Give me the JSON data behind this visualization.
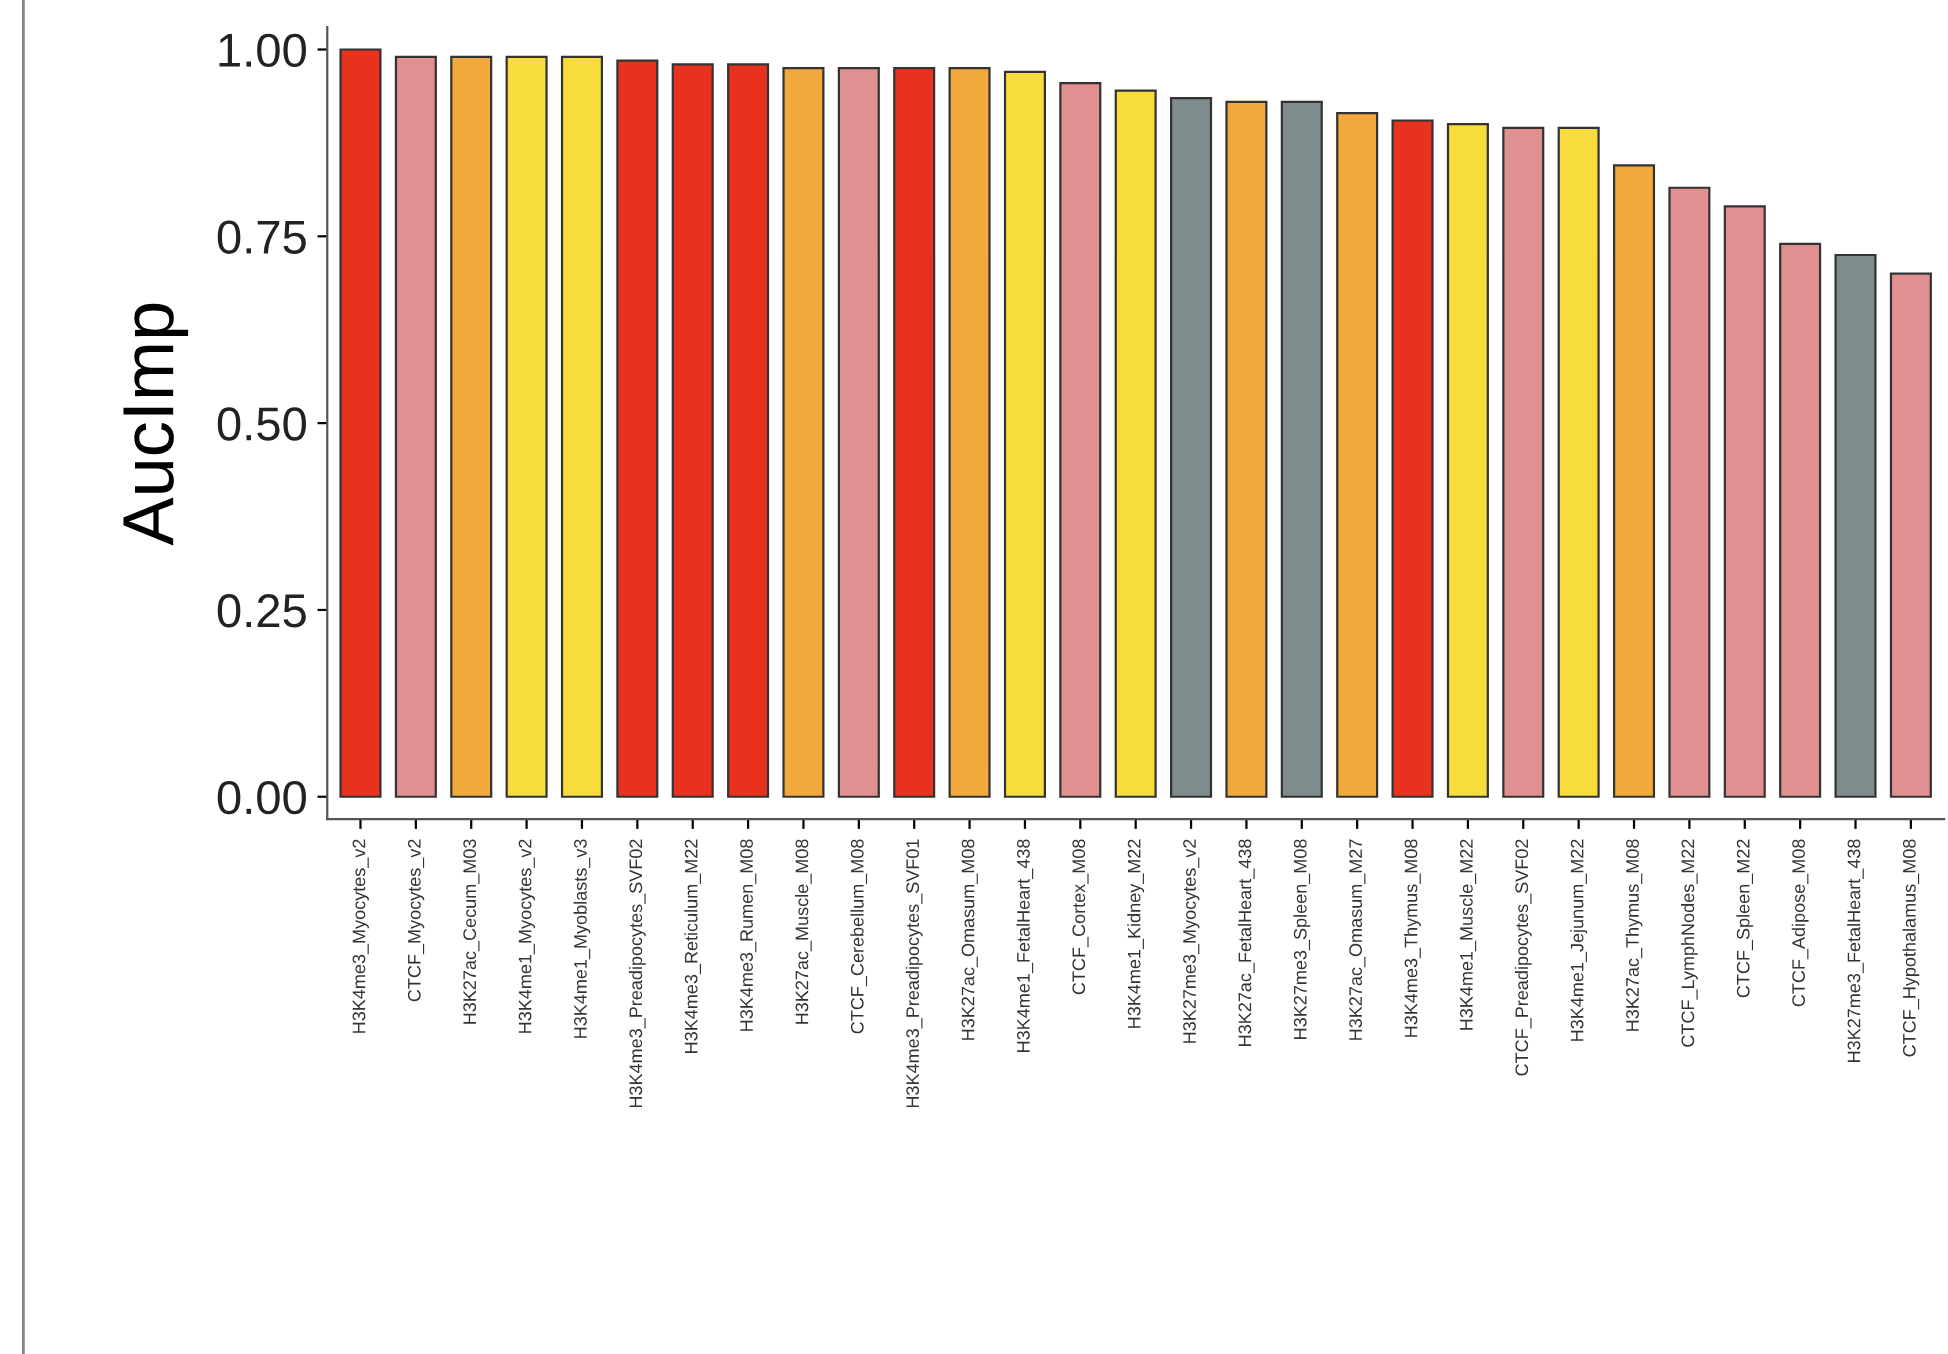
{
  "chart_data": {
    "type": "bar",
    "ylabel": "AucImp",
    "categories": [
      "H3K4me3_Myocytes_v2",
      "CTCF_Myocytes_v2",
      "H3K27ac_Cecum_M03",
      "H3K4me1_Myocytes_v2",
      "H3K4me1_Myoblasts_v3",
      "H3K4me3_Preadipocytes_SVF02",
      "H3K4me3_Reticulum_M22",
      "H3K4me3_Rumen_M08",
      "H3K27ac_Muscle_M08",
      "CTCF_Cerebellum_M08",
      "H3K4me3_Preadipocytes_SVF01",
      "H3K27ac_Omasum_M08",
      "H3K4me1_FetalHeart_438",
      "CTCF_Cortex_M08",
      "H3K4me1_Kidney_M22",
      "H3K27me3_Myocytes_v2",
      "H3K27ac_FetalHeart_438",
      "H3K27me3_Spleen_M08",
      "H3K27ac_Omasum_M27",
      "H3K4me3_Thymus_M08",
      "H3K4me1_Muscle_M22",
      "CTCF_Preadipocytes_SVF02",
      "H3K4me1_Jejunum_M22",
      "H3K27ac_Thymus_M08",
      "CTCF_LymphNodes_M22",
      "CTCF_Spleen_M22",
      "CTCF_Adipose_M08",
      "H3K27me3_FetalHeart_438",
      "CTCF_Hypothalamus_M08"
    ],
    "values": [
      1.0,
      0.99,
      0.99,
      0.99,
      0.99,
      0.985,
      0.98,
      0.98,
      0.975,
      0.975,
      0.975,
      0.975,
      0.97,
      0.955,
      0.945,
      0.935,
      0.93,
      0.93,
      0.915,
      0.905,
      0.9,
      0.895,
      0.895,
      0.845,
      0.815,
      0.79,
      0.74,
      0.725,
      0.7
    ],
    "colors": [
      "#e8321e",
      "#e09090",
      "#f2a93b",
      "#f7dc3c",
      "#f7dc3c",
      "#e8321e",
      "#e8321e",
      "#e8321e",
      "#f2a93b",
      "#e09090",
      "#e8321e",
      "#f2a93b",
      "#f7dc3c",
      "#e09090",
      "#f7dc3c",
      "#7e8c8e",
      "#f2a93b",
      "#7e8c8e",
      "#f2a93b",
      "#e8321e",
      "#f7dc3c",
      "#e09090",
      "#f7dc3c",
      "#f2a93b",
      "#e09090",
      "#e09090",
      "#e09090",
      "#7e8c8e",
      "#e09090"
    ],
    "ylim": [
      -0.03,
      1.03
    ],
    "yticks": [
      {
        "value": 0,
        "label": "0.00"
      },
      {
        "value": 0.25,
        "label": "0.25"
      },
      {
        "value": 0.5,
        "label": "0.50"
      },
      {
        "value": 0.75,
        "label": "0.75"
      },
      {
        "value": 1,
        "label": "1.00"
      }
    ],
    "grid": false
  }
}
